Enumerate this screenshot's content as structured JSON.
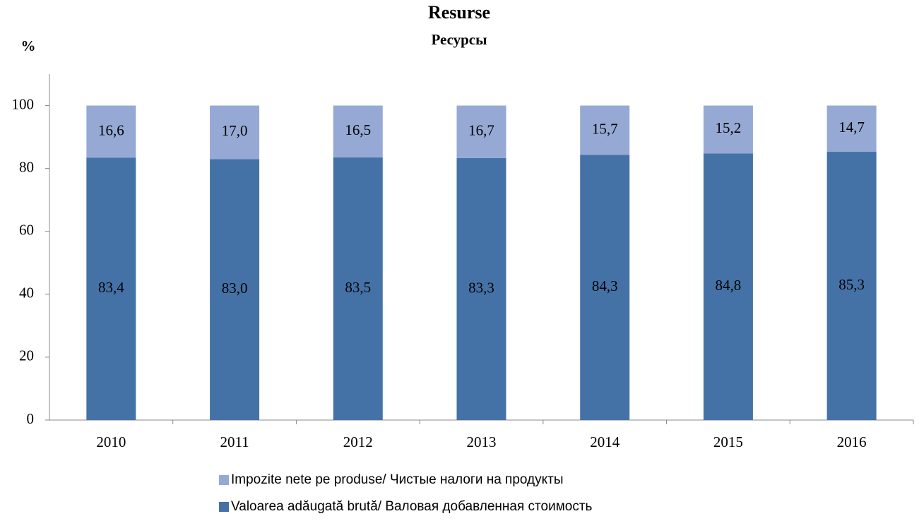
{
  "chart_data": {
    "type": "stacked_bar",
    "title": "Resurse",
    "subtitle": "Ресурсы",
    "y_label": "%",
    "categories": [
      "2010",
      "2011",
      "2012",
      "2013",
      "2014",
      "2015",
      "2016"
    ],
    "series": [
      {
        "name": "Valoarea adăugată brută/ Валовая добавленная стоимость",
        "color": "#4472a6",
        "values": [
          83.4,
          83.0,
          83.5,
          83.3,
          84.3,
          84.8,
          85.3
        ],
        "value_labels": [
          "83,4",
          "83,0",
          "83,5",
          "83,3",
          "84,3",
          "84,8",
          "85,3"
        ]
      },
      {
        "name": "Impozite nete pe produse/ Чистые налоги на продукты",
        "color": "#95a9d4",
        "values": [
          16.6,
          17.0,
          16.5,
          16.7,
          15.7,
          15.2,
          14.7
        ],
        "value_labels": [
          "16,6",
          "17,0",
          "16,5",
          "16,7",
          "15,7",
          "15,2",
          "14,7"
        ]
      }
    ],
    "ylim": [
      0,
      110
    ],
    "yticks": [
      0,
      20,
      40,
      60,
      80,
      100
    ]
  }
}
